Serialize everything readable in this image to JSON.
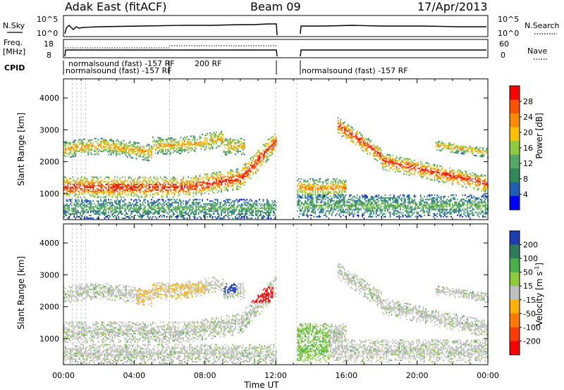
{
  "header": {
    "station": "Adak East (fitACF)",
    "beam": "Beam 09",
    "date": "17/Apr/2013"
  },
  "top_panels": {
    "nsky_label": "N.Sky",
    "nsky_ticks": [
      "10^5",
      "10^0"
    ],
    "nsearch_label": "N.Search",
    "nsearch_ticks": [
      "10^5",
      "10^0"
    ],
    "freq_label_1": "Freq.",
    "freq_label_2": "[MHz]",
    "freq_ticks": [
      "18",
      "8"
    ],
    "nave_label": "Nave",
    "nave_ticks": [
      "60",
      "0"
    ],
    "cpid_label": "CPID",
    "cpid_texts": [
      "normalsound (fast) -157 RF",
      "normalsound (fast) -157 RF",
      "200 RF"
    ]
  },
  "colors": {
    "power": [
      "#0000ff",
      "#1f5fb4",
      "#2e8b57",
      "#55a868",
      "#8ccb3c",
      "#ffc000",
      "#ff8c00",
      "#ff5000",
      "#ff0000"
    ],
    "velocity": [
      "#1f3fb0",
      "#2e7d5a",
      "#46b04a",
      "#8ccb3c",
      "#c0c0c0",
      "#ffb000",
      "#ff7800",
      "#ff3c00",
      "#ff0000"
    ]
  },
  "chart_data": [
    {
      "type": "heatmap",
      "title": "",
      "ylabel": "Slant Range [km]",
      "xlabel": "",
      "x_ticks": [
        "00:00",
        "04:00",
        "08:00",
        "12:00",
        "16:00",
        "20:00",
        "00:00"
      ],
      "xlim_hours": [
        0,
        24
      ],
      "ylim": [
        180,
        4600
      ],
      "y_ticks": [
        1000,
        2000,
        3000,
        4000
      ],
      "colorbar": {
        "label": "Power [dB]",
        "ticks": [
          "4",
          "8",
          "12",
          "16",
          "20",
          "24",
          "28"
        ],
        "range": [
          0,
          30
        ]
      },
      "data_gaps_hours": [
        [
          12.0,
          13.2
        ]
      ]
    },
    {
      "type": "heatmap",
      "title": "",
      "ylabel": "Slant Range [km]",
      "xlabel": "Time UT",
      "x_ticks": [
        "00:00",
        "04:00",
        "08:00",
        "12:00",
        "16:00",
        "20:00",
        "00:00"
      ],
      "xlim_hours": [
        0,
        24
      ],
      "ylim": [
        180,
        4600
      ],
      "y_ticks": [
        1000,
        2000,
        3000,
        4000
      ],
      "colorbar": {
        "label": "Velocity [m s",
        "label_sup": "-1",
        "label_end": "]",
        "ticks": [
          "200",
          "100",
          "50",
          "15",
          "-15",
          "-50",
          "-100",
          "-200"
        ],
        "range": [
          -250,
          250
        ]
      },
      "data_gaps_hours": [
        [
          12.0,
          13.2
        ]
      ]
    }
  ]
}
